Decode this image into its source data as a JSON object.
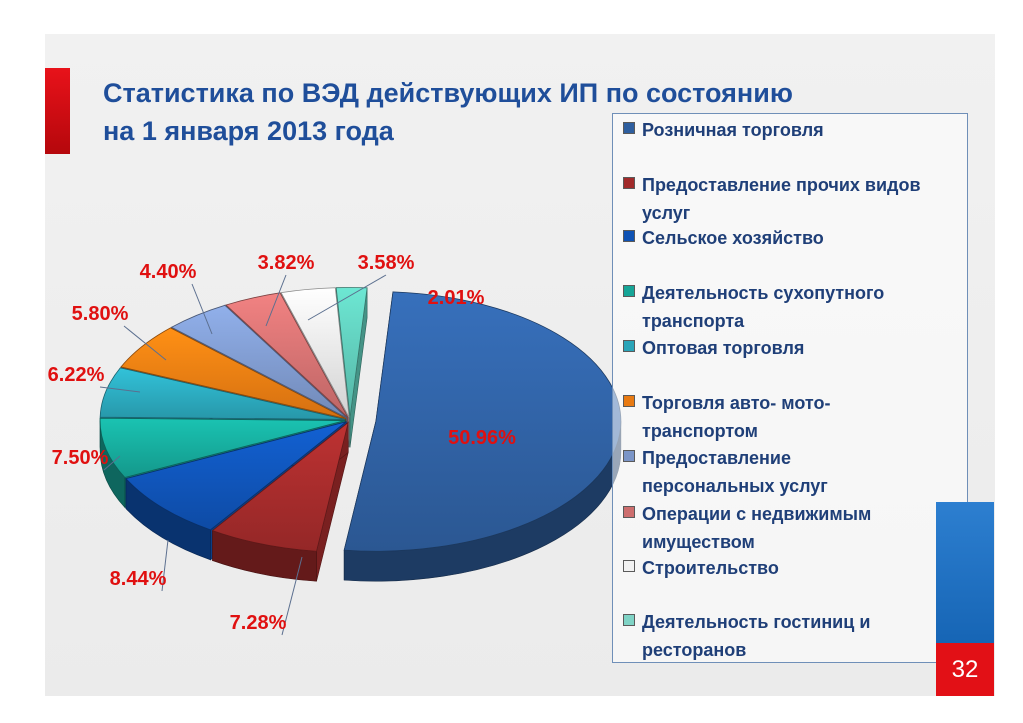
{
  "slide": {
    "title_line1": "Статистика по ВЭД действующих ИП по состоянию",
    "title_line2": "на 1 января 2013 года",
    "page_number": "32"
  },
  "chart_data": {
    "type": "pie",
    "title": "Статистика по ВЭД действующих ИП по состоянию на 1 января 2013 года",
    "legend_position": "right",
    "slices": [
      {
        "name": "Розничная торговля",
        "value": 50.96,
        "label": "50.96%",
        "color": "#2f5f9f"
      },
      {
        "name": "Предоставление прочих видов услуг",
        "value": 7.28,
        "label": "7.28%",
        "color": "#a12a2a"
      },
      {
        "name": "Сельское хозяйство",
        "value": 8.44,
        "label": "8.44%",
        "color": "#0f52b3"
      },
      {
        "name": "Деятельность сухопутного транспорта",
        "value": 7.5,
        "label": "7.50%",
        "color": "#16a597"
      },
      {
        "name": "Оптовая торговля",
        "value": 6.22,
        "label": "6.22%",
        "color": "#2aa4b8"
      },
      {
        "name": "Торговля авто- мото- транспортом",
        "value": 5.8,
        "label": "5.80%",
        "color": "#e87a12"
      },
      {
        "name": "Предоставление персональных услуг",
        "value": 4.4,
        "label": "4.40%",
        "color": "#7b95c7"
      },
      {
        "name": "Операции с недвижимым имуществом",
        "value": 3.82,
        "label": "3.82%",
        "color": "#cd6e6e"
      },
      {
        "name": "Строительство",
        "value": 3.58,
        "label": "3.58%",
        "color": "#e4e4e4"
      },
      {
        "name": "Деятельность гостиниц и ресторанов",
        "value": 2.01,
        "label": "2.01%",
        "color": "#5cc4b3"
      }
    ]
  },
  "legend": {
    "items": [
      {
        "line1": "Розничная торговля",
        "line2": "",
        "color": "#2f5f9f"
      },
      {
        "line1": "Предоставление прочих видов",
        "line2": "услуг",
        "color": "#a12a2a"
      },
      {
        "line1": "Сельское хозяйство",
        "line2": "",
        "color": "#0f52b3"
      },
      {
        "line1": "Деятельность сухопутного",
        "line2": "транспорта",
        "color": "#16a597"
      },
      {
        "line1": "Оптовая торговля",
        "line2": "",
        "color": "#2aa4b8"
      },
      {
        "line1": "Торговля авто- мото-",
        "line2": "транспортом",
        "color": "#e87a12"
      },
      {
        "line1": "Предоставление",
        "line2": "персональных услуг",
        "color": "#7b95c7"
      },
      {
        "line1": "Операции с недвижимым",
        "line2": "имуществом",
        "color": "#cd6e6e"
      },
      {
        "line1": "Строительство",
        "line2": "",
        "color": "#f2f2f2"
      },
      {
        "line1": "Деятельность гостиниц и",
        "line2": "ресторанов",
        "color": "#7fd3c5"
      }
    ]
  }
}
